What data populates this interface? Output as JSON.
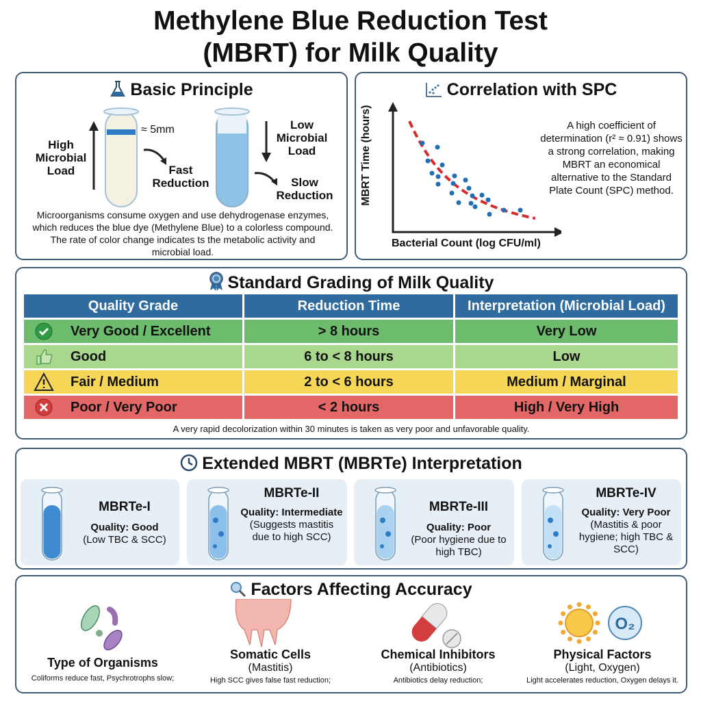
{
  "title": {
    "line1": "Methylene Blue Reduction Test",
    "line2": "(MBRT) for Milk Quality"
  },
  "principle": {
    "heading": "Basic Principle",
    "icon": "flask-icon",
    "high_load": "High Microbial Load",
    "fast": "Fast Reduction",
    "band": "≈ 5mm",
    "low_load": "Low Microbial Load",
    "slow": "Slow Reduction",
    "description": "Microorganisms consume oxygen and use dehydrogenase enzymes, which reduces the blue dye (Methylene Blue) to a colorless compound. The rate of color change indicates ts the metabolic activity and microbial load."
  },
  "correlation": {
    "heading": "Correlation with SPC",
    "icon": "scatter-plot-icon",
    "ylabel": "MBRT Time (hours)",
    "xlabel": "Bacterial Count (log CFU/ml)",
    "description": "A high coefficient of determination (r² ≈ 0.91) shows a strong correlation, making MBRT an economical alternative to the Standard Plate Count (SPC) method.",
    "point_color": "#1f6fb2",
    "trend_color": "#d62a2a"
  },
  "grading": {
    "heading": "Standard Grading of Milk Quality",
    "icon": "award-ribbon-icon",
    "headers": [
      "Quality Grade",
      "Reduction Time",
      "Interpretation (Microbial Load)"
    ],
    "rows": [
      {
        "grade": "Very Good / Excellent",
        "time": "> 8 hours",
        "load": "Very Low",
        "icon": "check-circle-icon",
        "color": "#6dbb6d"
      },
      {
        "grade": "Good",
        "time": "6 to < 8 hours",
        "load": "Low",
        "icon": "thumbs-up-icon",
        "color": "#a9d78e"
      },
      {
        "grade": "Fair / Medium",
        "time": "2 to < 6 hours",
        "load": "Medium / Marginal",
        "icon": "warning-icon",
        "color": "#f6d656"
      },
      {
        "grade": "Poor / Very Poor",
        "time": "< 2 hours",
        "load": "High / Very High",
        "icon": "x-circle-icon",
        "color": "#e46767"
      }
    ],
    "footnote": "A very rapid decolorization within 30 minutes is taken as very poor and unfavorable quality."
  },
  "extended": {
    "heading": "Extended MBRT (MBRTe) Interpretation",
    "icon": "clock-icon",
    "cards": [
      {
        "name": "MBRTe-I",
        "quality": "Quality: Good",
        "note": "(Low TBC & SCC)"
      },
      {
        "name": "MBRTe-II",
        "quality": "Quality: Intermediate",
        "note": "(Suggests mastitis due to high SCC)"
      },
      {
        "name": "MBRTe-III",
        "quality": "Quality: Poor",
        "note": "(Poor hygiene due to high TBC)"
      },
      {
        "name": "MBRTe-IV",
        "quality": "Quality: Very Poor",
        "note": "(Mastitis & poor hygiene; high TBC & SCC)"
      }
    ]
  },
  "factors": {
    "heading": "Factors Affecting Accuracy",
    "icon": "magnifier-icon",
    "items": [
      {
        "title": "Type of Organisms",
        "sub": "",
        "note": "Coliforms reduce fast, Psychrotrophs slow;",
        "icon": "bacteria-icon"
      },
      {
        "title": "Somatic Cells",
        "sub": "(Mastitis)",
        "note": "High SCC gives false fast reduction;",
        "icon": "udder-icon"
      },
      {
        "title": "Chemical Inhibitors",
        "sub": "(Antibiotics)",
        "note": "Antibiotics delay reduction;",
        "icon": "pill-icon"
      },
      {
        "title": "Physical Factors",
        "sub": "(Light, Oxygen)",
        "note": "Light accelerates reduction, Oxygen delays it.",
        "icon": "sun-oxygen-icon"
      }
    ],
    "o2_label": "O₂"
  }
}
